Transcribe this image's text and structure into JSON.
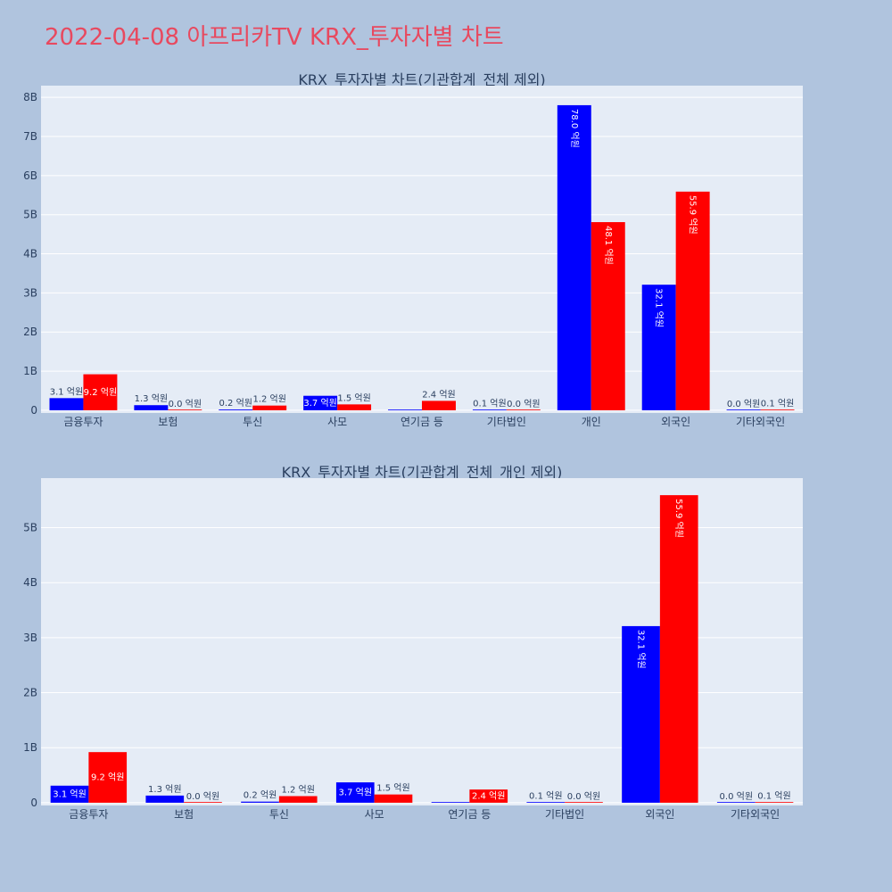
{
  "page": {
    "title": "2022-04-08 아프리카TV KRX_투자자별 차트"
  },
  "colors": {
    "background": "#b0c4de",
    "plot_bg": "#e5ecf6",
    "grid": "#ffffff",
    "title": "#e8495f",
    "text": "#2a3f5f",
    "buy": "#0000ff",
    "sell": "#ff0000"
  },
  "chart_data": [
    {
      "type": "bar",
      "title": "KRX_투자자별 차트(기관합계_전체 제외)",
      "categories": [
        "금융투자",
        "보험",
        "투신",
        "사모",
        "연기금 등",
        "기타법인",
        "개인",
        "외국인",
        "기타외국인"
      ],
      "series": [
        {
          "color": "#0000ff",
          "values": [
            310000000,
            130000000,
            20000000,
            370000000,
            0,
            10000000,
            7800000000,
            3210000000,
            0
          ],
          "labels": [
            "3.1 억원",
            "1.3 억원",
            "0.2 억원",
            "3.7 억원",
            "",
            "0.1 억원",
            "78.0 억원",
            "32.1 억원",
            "0.0 억원"
          ]
        },
        {
          "color": "#ff0000",
          "values": [
            920000000,
            0,
            120000000,
            150000000,
            240000000,
            0,
            4810000000,
            5590000000,
            10000000
          ],
          "labels": [
            "9.2 억원",
            "0.0 억원",
            "1.2 억원",
            "1.5 억원",
            "2.4 억원",
            "0.0 억원",
            "48.1 억원",
            "55.9 억원",
            "0.1 억원"
          ]
        }
      ],
      "yticks": [
        0,
        1000000000,
        2000000000,
        3000000000,
        4000000000,
        5000000000,
        6000000000,
        7000000000,
        8000000000
      ],
      "yticklabels": [
        "0",
        "1B",
        "2B",
        "3B",
        "4B",
        "5B",
        "6B",
        "7B",
        "8B"
      ],
      "ylim": [
        -70000000,
        8300000000
      ],
      "grid": true
    },
    {
      "type": "bar",
      "title": "KRX_투자자별 차트(기관합계_전체_개인 제외)",
      "categories": [
        "금융투자",
        "보험",
        "투신",
        "사모",
        "연기금 등",
        "기타법인",
        "외국인",
        "기타외국인"
      ],
      "series": [
        {
          "color": "#0000ff",
          "values": [
            310000000,
            130000000,
            20000000,
            370000000,
            0,
            10000000,
            3210000000,
            0
          ],
          "labels": [
            "3.1 억원",
            "1.3 억원",
            "0.2 억원",
            "3.7 억원",
            "",
            "0.1 억원",
            "32.1 억원",
            "0.0 억원"
          ]
        },
        {
          "color": "#ff0000",
          "values": [
            920000000,
            0,
            120000000,
            150000000,
            240000000,
            0,
            5590000000,
            10000000
          ],
          "labels": [
            "9.2 억원",
            "0.0 억원",
            "1.2 억원",
            "1.5 억원",
            "2.4 억원",
            "0.0 억원",
            "55.9 억원",
            "0.1 억원"
          ]
        }
      ],
      "yticks": [
        0,
        1000000000,
        2000000000,
        3000000000,
        4000000000,
        5000000000
      ],
      "yticklabels": [
        "0",
        "1B",
        "2B",
        "3B",
        "4B",
        "5B"
      ],
      "ylim": [
        -50000000,
        5900000000
      ],
      "grid": true
    }
  ]
}
